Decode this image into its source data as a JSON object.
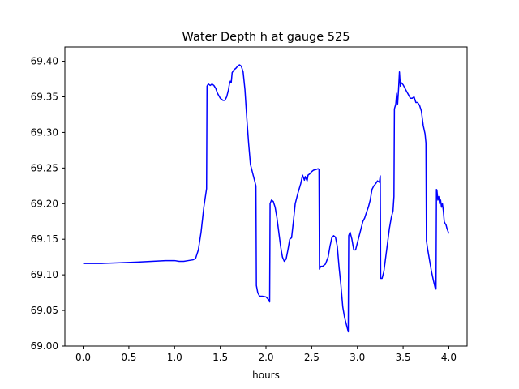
{
  "chart_data": {
    "type": "line",
    "title": "Water Depth h at gauge 525",
    "xlabel": "hours",
    "ylabel": "",
    "xlim": [
      -0.2,
      4.2
    ],
    "ylim": [
      69.0,
      69.42
    ],
    "grid": false,
    "legend": "none",
    "xticks": [
      0.0,
      0.5,
      1.0,
      1.5,
      2.0,
      2.5,
      3.0,
      3.5,
      4.0
    ],
    "xtick_labels": [
      "0.0",
      "0.5",
      "1.0",
      "1.5",
      "2.0",
      "2.5",
      "3.0",
      "3.5",
      "4.0"
    ],
    "yticks": [
      69.0,
      69.05,
      69.1,
      69.15,
      69.2,
      69.25,
      69.3,
      69.35,
      69.4
    ],
    "ytick_labels": [
      "69.00",
      "69.05",
      "69.10",
      "69.15",
      "69.20",
      "69.25",
      "69.30",
      "69.35",
      "69.40"
    ],
    "series": [
      {
        "name": "",
        "color": "#0000ff",
        "x": [
          0.0,
          0.2,
          0.4,
          0.6,
          0.75,
          0.9,
          1.0,
          1.05,
          1.1,
          1.15,
          1.2,
          1.23,
          1.26,
          1.29,
          1.32,
          1.35,
          1.355,
          1.37,
          1.39,
          1.41,
          1.43,
          1.45,
          1.47,
          1.5,
          1.53,
          1.55,
          1.57,
          1.59,
          1.6,
          1.61,
          1.62,
          1.63,
          1.65,
          1.67,
          1.69,
          1.71,
          1.73,
          1.75,
          1.77,
          1.79,
          1.81,
          1.83,
          1.85,
          1.87,
          1.89,
          1.895,
          1.91,
          1.93,
          1.96,
          2.0,
          2.03,
          2.04,
          2.045,
          2.06,
          2.08,
          2.1,
          2.12,
          2.14,
          2.16,
          2.18,
          2.2,
          2.22,
          2.24,
          2.26,
          2.28,
          2.3,
          2.32,
          2.35,
          2.38,
          2.4,
          2.42,
          2.43,
          2.45,
          2.46,
          2.48,
          2.5,
          2.52,
          2.55,
          2.57,
          2.58,
          2.585,
          2.6,
          2.62,
          2.65,
          2.68,
          2.7,
          2.72,
          2.74,
          2.76,
          2.78,
          2.8,
          2.82,
          2.84,
          2.86,
          2.88,
          2.9,
          2.905,
          2.92,
          2.94,
          2.96,
          2.98,
          3.0,
          3.02,
          3.04,
          3.06,
          3.08,
          3.1,
          3.12,
          3.14,
          3.16,
          3.18,
          3.2,
          3.22,
          3.24,
          3.25,
          3.255,
          3.27,
          3.29,
          3.31,
          3.33,
          3.35,
          3.37,
          3.39,
          3.4,
          3.405,
          3.42,
          3.43,
          3.44,
          3.45,
          3.46,
          3.47,
          3.48,
          3.5,
          3.52,
          3.55,
          3.58,
          3.6,
          3.62,
          3.64,
          3.66,
          3.68,
          3.7,
          3.72,
          3.74,
          3.75,
          3.755,
          3.77,
          3.79,
          3.81,
          3.83,
          3.85,
          3.86,
          3.865,
          3.87,
          3.88,
          3.89,
          3.9,
          3.91,
          3.92,
          3.93,
          3.94,
          3.95,
          3.96,
          3.97,
          3.98,
          4.0
        ],
        "y": [
          69.116,
          69.116,
          69.117,
          69.118,
          69.119,
          69.12,
          69.12,
          69.119,
          69.119,
          69.12,
          69.121,
          69.123,
          69.135,
          69.16,
          69.195,
          69.221,
          69.365,
          69.368,
          69.366,
          69.368,
          69.366,
          69.362,
          69.355,
          69.348,
          69.345,
          69.345,
          69.35,
          69.36,
          69.368,
          69.372,
          69.37,
          69.384,
          69.388,
          69.39,
          69.393,
          69.395,
          69.393,
          69.385,
          69.36,
          69.32,
          69.285,
          69.255,
          69.245,
          69.235,
          69.225,
          69.085,
          69.075,
          69.07,
          69.07,
          69.069,
          69.065,
          69.062,
          69.2,
          69.205,
          69.203,
          69.195,
          69.18,
          69.16,
          69.14,
          69.125,
          69.119,
          69.122,
          69.135,
          69.15,
          69.152,
          69.175,
          69.2,
          69.215,
          69.228,
          69.24,
          69.233,
          69.238,
          69.232,
          69.24,
          69.242,
          69.245,
          69.247,
          69.248,
          69.249,
          69.248,
          69.108,
          69.112,
          69.112,
          69.115,
          69.125,
          69.14,
          69.152,
          69.155,
          69.153,
          69.14,
          69.11,
          69.085,
          69.055,
          69.04,
          69.03,
          69.02,
          69.155,
          69.16,
          69.15,
          69.135,
          69.135,
          69.145,
          69.155,
          69.165,
          69.175,
          69.18,
          69.188,
          69.195,
          69.205,
          69.22,
          69.225,
          69.228,
          69.232,
          69.23,
          69.239,
          69.095,
          69.095,
          69.105,
          69.125,
          69.145,
          69.165,
          69.18,
          69.19,
          69.21,
          69.333,
          69.34,
          69.355,
          69.34,
          69.36,
          69.385,
          69.365,
          69.37,
          69.367,
          69.362,
          69.355,
          69.348,
          69.348,
          69.35,
          69.342,
          69.342,
          69.338,
          69.33,
          69.31,
          69.298,
          69.285,
          69.148,
          69.135,
          69.12,
          69.105,
          69.093,
          69.082,
          69.08,
          69.22,
          69.219,
          69.205,
          69.21,
          69.2,
          69.205,
          69.195,
          69.2,
          69.19,
          69.175,
          69.172,
          69.17,
          69.165,
          69.158
        ]
      }
    ]
  }
}
